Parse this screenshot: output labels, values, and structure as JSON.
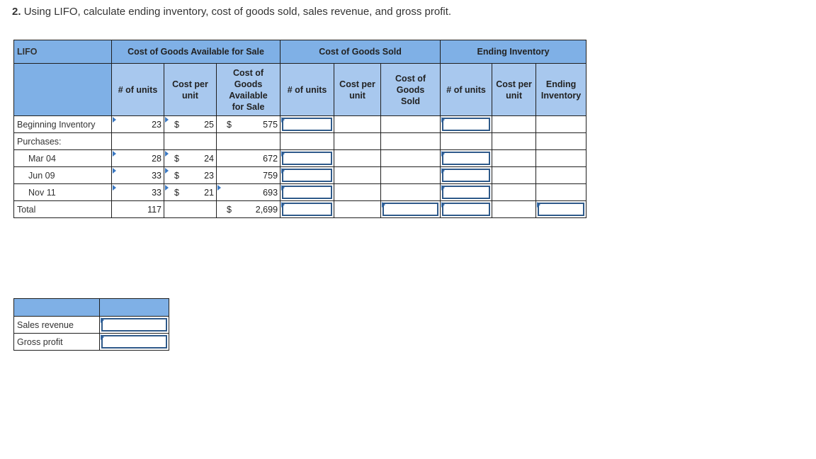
{
  "question": {
    "number": "2.",
    "text": "Using LIFO, calculate ending inventory, cost of goods sold, sales revenue, and gross profit."
  },
  "main_table": {
    "corner_label": "LIFO",
    "group_headers": {
      "available": "Cost of Goods Available for Sale",
      "cogs": "Cost of Goods Sold",
      "ending": "Ending Inventory"
    },
    "sub_headers": {
      "units": "# of units",
      "cost_per_unit": "Cost per unit",
      "cost_available": "Cost of Goods Available for Sale",
      "cogs_units": "# of units",
      "cogs_cost_per_unit": "Cost per unit",
      "cogs_total": "Cost of Goods Sold",
      "ending_units": "# of units",
      "ending_cost_per_unit": "Cost per unit",
      "ending_total": "Ending Inventory"
    },
    "rows": {
      "beginning": {
        "label": "Beginning Inventory",
        "units": "23",
        "dollar": "$",
        "cost": "25",
        "dollar2": "$",
        "total": "575"
      },
      "purchases": {
        "label": "Purchases:"
      },
      "mar": {
        "label": "Mar 04",
        "units": "28",
        "dollar": "$",
        "cost": "24",
        "total": "672"
      },
      "jun": {
        "label": "Jun 09",
        "units": "33",
        "dollar": "$",
        "cost": "23",
        "total": "759"
      },
      "nov": {
        "label": "Nov 11",
        "units": "33",
        "dollar": "$",
        "cost": "21",
        "total": "693"
      },
      "total": {
        "label": "Total",
        "units": "117",
        "dollar": "$",
        "total": "2,699"
      }
    }
  },
  "summary_table": {
    "rows": {
      "sales": {
        "label": "Sales revenue",
        "value": ""
      },
      "gross": {
        "label": "Gross profit",
        "value": ""
      }
    }
  },
  "colors": {
    "header_dark": "#7fb0e6",
    "header_light": "#a8c8ee",
    "input_border": "#2f4f70",
    "flag": "#3a78c2"
  }
}
